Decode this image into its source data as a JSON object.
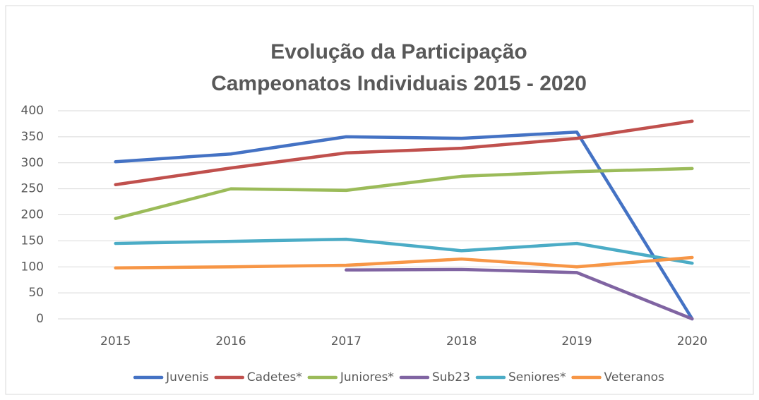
{
  "chart_data": {
    "type": "line",
    "title": [
      "Evolução da Participação",
      "Campeonatos Individuais 2015 - 2020"
    ],
    "categories": [
      "2015",
      "2016",
      "2017",
      "2018",
      "2019",
      "2020"
    ],
    "series": [
      {
        "name": "Juvenis",
        "color": "#4472c4",
        "values": [
          302,
          317,
          350,
          347,
          359,
          0
        ]
      },
      {
        "name": "Cadetes*",
        "color": "#c0504d",
        "values": [
          258,
          290,
          319,
          328,
          347,
          380
        ]
      },
      {
        "name": "Juniores*",
        "color": "#9bbb59",
        "values": [
          193,
          250,
          247,
          274,
          283,
          289
        ]
      },
      {
        "name": "Sub23",
        "color": "#8064a2",
        "values": [
          null,
          null,
          94,
          95,
          89,
          0
        ]
      },
      {
        "name": "Seniores*",
        "color": "#4bacc6",
        "values": [
          145,
          149,
          153,
          131,
          145,
          107
        ]
      },
      {
        "name": "Veteranos",
        "color": "#f79646",
        "values": [
          98,
          100,
          103,
          115,
          100,
          118
        ]
      }
    ],
    "ylim": [
      0,
      400
    ],
    "yticks": [
      0,
      50,
      100,
      150,
      200,
      250,
      300,
      350,
      400
    ],
    "grid": true,
    "legend": "bottom"
  }
}
